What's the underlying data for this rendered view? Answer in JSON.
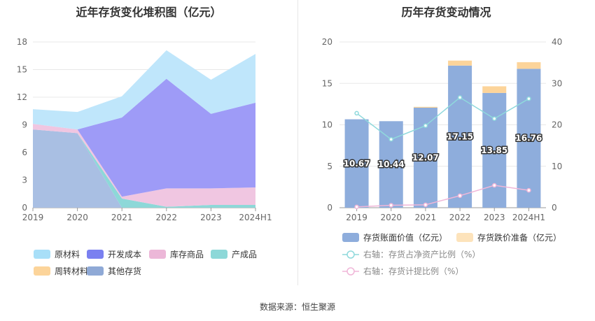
{
  "source": "数据来源：恒生聚源",
  "chart_data": [
    {
      "type": "area",
      "stacked": true,
      "title": "近年存货变化堆积图（亿元）",
      "categories": [
        "2019",
        "2020",
        "2021",
        "2022",
        "2023",
        "2024H1"
      ],
      "ylim": [
        0,
        18
      ],
      "yticks": [
        0,
        3,
        6,
        9,
        12,
        15,
        18
      ],
      "series": [
        {
          "name": "其他存货",
          "color": "#a9bfe3",
          "values": [
            8.5,
            8.1,
            0.0,
            0.0,
            0.0,
            0.0
          ]
        },
        {
          "name": "周转材料",
          "color": "#fcd49a",
          "values": [
            0.0,
            0.0,
            0.0,
            0.0,
            0.0,
            0.0
          ]
        },
        {
          "name": "产成品",
          "color": "#8dd8d8",
          "values": [
            0.0,
            0.0,
            1.0,
            0.1,
            0.3,
            0.3
          ]
        },
        {
          "name": "库存商品",
          "color": "#f0c6e1",
          "values": [
            0.6,
            0.4,
            0.2,
            2.0,
            1.8,
            1.9
          ]
        },
        {
          "name": "开发成本",
          "color": "#9e9bf7",
          "values": [
            0.0,
            0.0,
            8.6,
            11.9,
            8.1,
            9.2
          ]
        },
        {
          "name": "原材料",
          "color": "#bfe6fb",
          "values": [
            1.6,
            1.9,
            2.3,
            3.1,
            3.7,
            5.3
          ]
        }
      ],
      "legend": {
        "position": "bottom",
        "items": [
          {
            "name": "原材料",
            "color": "#a8dff8"
          },
          {
            "name": "开发成本",
            "color": "#7a80f0"
          },
          {
            "name": "库存商品",
            "color": "#ecb7d8"
          },
          {
            "name": "产成品",
            "color": "#8dd8d8"
          },
          {
            "name": "周转材料",
            "color": "#fcd49a"
          },
          {
            "name": "其他存货",
            "color": "#8fa9d6"
          }
        ]
      }
    },
    {
      "type": "bar+line",
      "title": "历年存货变动情况",
      "categories": [
        "2019",
        "2020",
        "2021",
        "2022",
        "2023",
        "2024H1"
      ],
      "ylim_left": [
        0,
        20
      ],
      "yticks_left": [
        0,
        5,
        10,
        15,
        20
      ],
      "ylim_right": [
        0,
        40
      ],
      "yticks_right": [
        0,
        10,
        20,
        30,
        40
      ],
      "bars": [
        {
          "name": "存货账面价值（亿元）",
          "color": "#8eaddc",
          "values": [
            10.67,
            10.44,
            12.07,
            17.15,
            13.85,
            16.76
          ],
          "labels": [
            "10.67",
            "10.44",
            "12.07",
            "17.15",
            "13.85",
            "16.76"
          ]
        },
        {
          "name": "存货跌价准备（亿元）",
          "color": "#fcd49a",
          "values": [
            0.0,
            0.0,
            0.1,
            0.6,
            0.8,
            0.8
          ]
        }
      ],
      "lines": [
        {
          "name": "右轴：存货占净资产比例（%）",
          "color": "#8fd9dc",
          "values": [
            22.8,
            16.5,
            19.8,
            26.6,
            21.5,
            26.3
          ]
        },
        {
          "name": "右轴：存货计提比例（%）",
          "color": "#f0b6d8",
          "values": [
            0.2,
            0.6,
            0.7,
            2.9,
            5.4,
            4.2
          ]
        }
      ],
      "legend": {
        "position": "bottom",
        "items": [
          {
            "name": "存货账面价值（亿元）",
            "color": "#8eaddc",
            "kind": "box"
          },
          {
            "name": "存货跌价准备（亿元）",
            "color": "#fde3bb",
            "kind": "box"
          },
          {
            "name": "右轴：存货占净资产比例（%）",
            "color": "#8fd9dc",
            "kind": "line"
          },
          {
            "name": "右轴：存货计提比例（%）",
            "color": "#f0b6d8",
            "kind": "line"
          }
        ]
      }
    }
  ]
}
